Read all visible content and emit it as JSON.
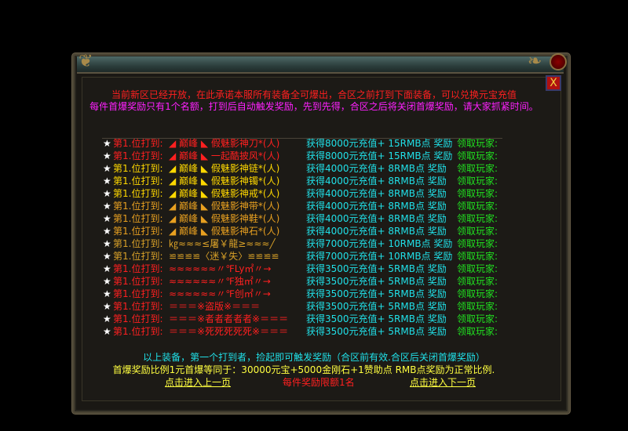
{
  "intro": {
    "line1": "当前新区已经开放，在此承诺本服所有装备全可爆出，合区之前打到下面装备，可以兑换元宝充值",
    "line2": "每件首爆奖励只有1个名额，打到后自动触发奖励，先到先得，合区之后将关闭首爆奖励，请大家抓紧时间。"
  },
  "rows": [
    {
      "star": "★",
      "label": "第1.位打到:",
      "item": "◢ 巅峰 ◣  假魅影神刀*(人)",
      "reward": "获得8000元充值+ 15RMB点 奖励",
      "player": "领取玩家:",
      "lc": "red",
      "ic": "red"
    },
    {
      "star": "★",
      "label": "第1.位打到:",
      "item": "◢ 巅峰 ◣  一起酷披风*(人)",
      "reward": "获得8000元充值+ 15RMB点 奖励",
      "player": "领取玩家:",
      "lc": "red",
      "ic": "red"
    },
    {
      "star": "★",
      "label": "第1.位打到:",
      "item": "◢ 巅峰 ◣  假魅影神链*(人)",
      "reward": "获得4000元充值+ 8RMB点 奖励",
      "player": "领取玩家:",
      "lc": "yel",
      "ic": "yel"
    },
    {
      "star": "★",
      "label": "第1.位打到:",
      "item": "◢ 巅峰 ◣  假魅影神镯*(人)",
      "reward": "获得4000元充值+ 8RMB点 奖励",
      "player": "领取玩家:",
      "lc": "yel",
      "ic": "yel"
    },
    {
      "star": "★",
      "label": "第1.位打到:",
      "item": "◢ 巅峰 ◣  假魅影神戒*(人)",
      "reward": "获得4000元充值+ 8RMB点 奖励",
      "player": "领取玩家:",
      "lc": "yel",
      "ic": "yel"
    },
    {
      "star": "★",
      "label": "第1.位打到:",
      "item": "◢ 巅峰 ◣  假魅影神带*(人)",
      "reward": "获得4000元充值+ 8RMB点 奖励",
      "player": "领取玩家:",
      "lc": "org",
      "ic": "org"
    },
    {
      "star": "★",
      "label": "第1.位打到:",
      "item": "◢ 巅峰 ◣  假魅影神鞋*(人)",
      "reward": "获得4000元充值+ 8RMB点 奖励",
      "player": "领取玩家:",
      "lc": "org",
      "ic": "org"
    },
    {
      "star": "★",
      "label": "第1.位打到:",
      "item": "◢ 巅峰 ◣  假魅影神石*(人)",
      "reward": "获得4000元充值+ 8RMB点 奖励",
      "player": "领取玩家:",
      "lc": "org",
      "ic": "org"
    },
    {
      "star": "★",
      "label": "第1.位打到:",
      "item": "㎏≈≈≈≤屠￥龍≥≈≈≈╱",
      "reward": "获得7000元充值+ 10RMB点 奖励",
      "player": "领取玩家:",
      "lc": "gold",
      "ic": "gold"
    },
    {
      "star": "★",
      "label": "第1.位打到:",
      "item": "≌≌≌≌〈迷￥失〉≌≌≌≌",
      "reward": "获得7000元充值+ 10RMB点 奖励",
      "player": "领取玩家:",
      "lc": "gold",
      "ic": "gold"
    },
    {
      "star": "★",
      "label": "第1.位打到:",
      "item": "≈≈≈≈≈≈〃℉Ly㎡〃→",
      "reward": "获得3500元充值+ 5RMB点 奖励",
      "player": "领取玩家:",
      "lc": "red",
      "ic": "red"
    },
    {
      "star": "★",
      "label": "第1.位打到:",
      "item": "≈≈≈≈≈≈〃℉独㎡〃→",
      "reward": "获得3500元充值+ 5RMB点 奖励",
      "player": "领取玩家:",
      "lc": "red",
      "ic": "red"
    },
    {
      "star": "★",
      "label": "第1.位打到:",
      "item": "≈≈≈≈≈≈〃℉创㎡〃→",
      "reward": "获得3500元充值+ 5RMB点 奖励",
      "player": "领取玩家:",
      "lc": "red",
      "ic": "red"
    },
    {
      "star": "★",
      "label": "第1.位打到:",
      "item": "＝＝＝※盗版※＝＝＝",
      "reward": "获得3500元充值+ 5RMB点 奖励",
      "player": "领取玩家:",
      "lc": "red",
      "ic": "red"
    },
    {
      "star": "★",
      "label": "第1.位打到:",
      "item": "＝＝＝※者者者者者※＝＝＝",
      "reward": "获得3500元充值+ 5RMB点 奖励",
      "player": "领取玩家:",
      "lc": "red",
      "ic": "red"
    },
    {
      "star": "★",
      "label": "第1.位打到:",
      "item": "＝＝＝※死死死死死※＝＝＝",
      "reward": "获得3500元充值+ 5RMB点 奖励",
      "player": "领取玩家:",
      "lc": "red",
      "ic": "red"
    }
  ],
  "footer": {
    "note": "以上装备，第一个打到者，捡起即可触发奖励（合区前有效.合区后关闭首爆奖励）",
    "ratio": "首爆奖励比例1元首爆等同于：30000元宝+5000金刚石+1赞助点 RMB点奖励为正常比例.",
    "prev": "点击进入上一页",
    "limit": "每件奖励限额1名",
    "next": "点击进入下一页"
  },
  "close_label": "X",
  "colors": {
    "red": "#ff2020",
    "yellow": "#ffd800",
    "orange": "#e8a020",
    "cyan": "#20e0e8",
    "green": "#20e020",
    "magenta": "#ff20ff"
  }
}
